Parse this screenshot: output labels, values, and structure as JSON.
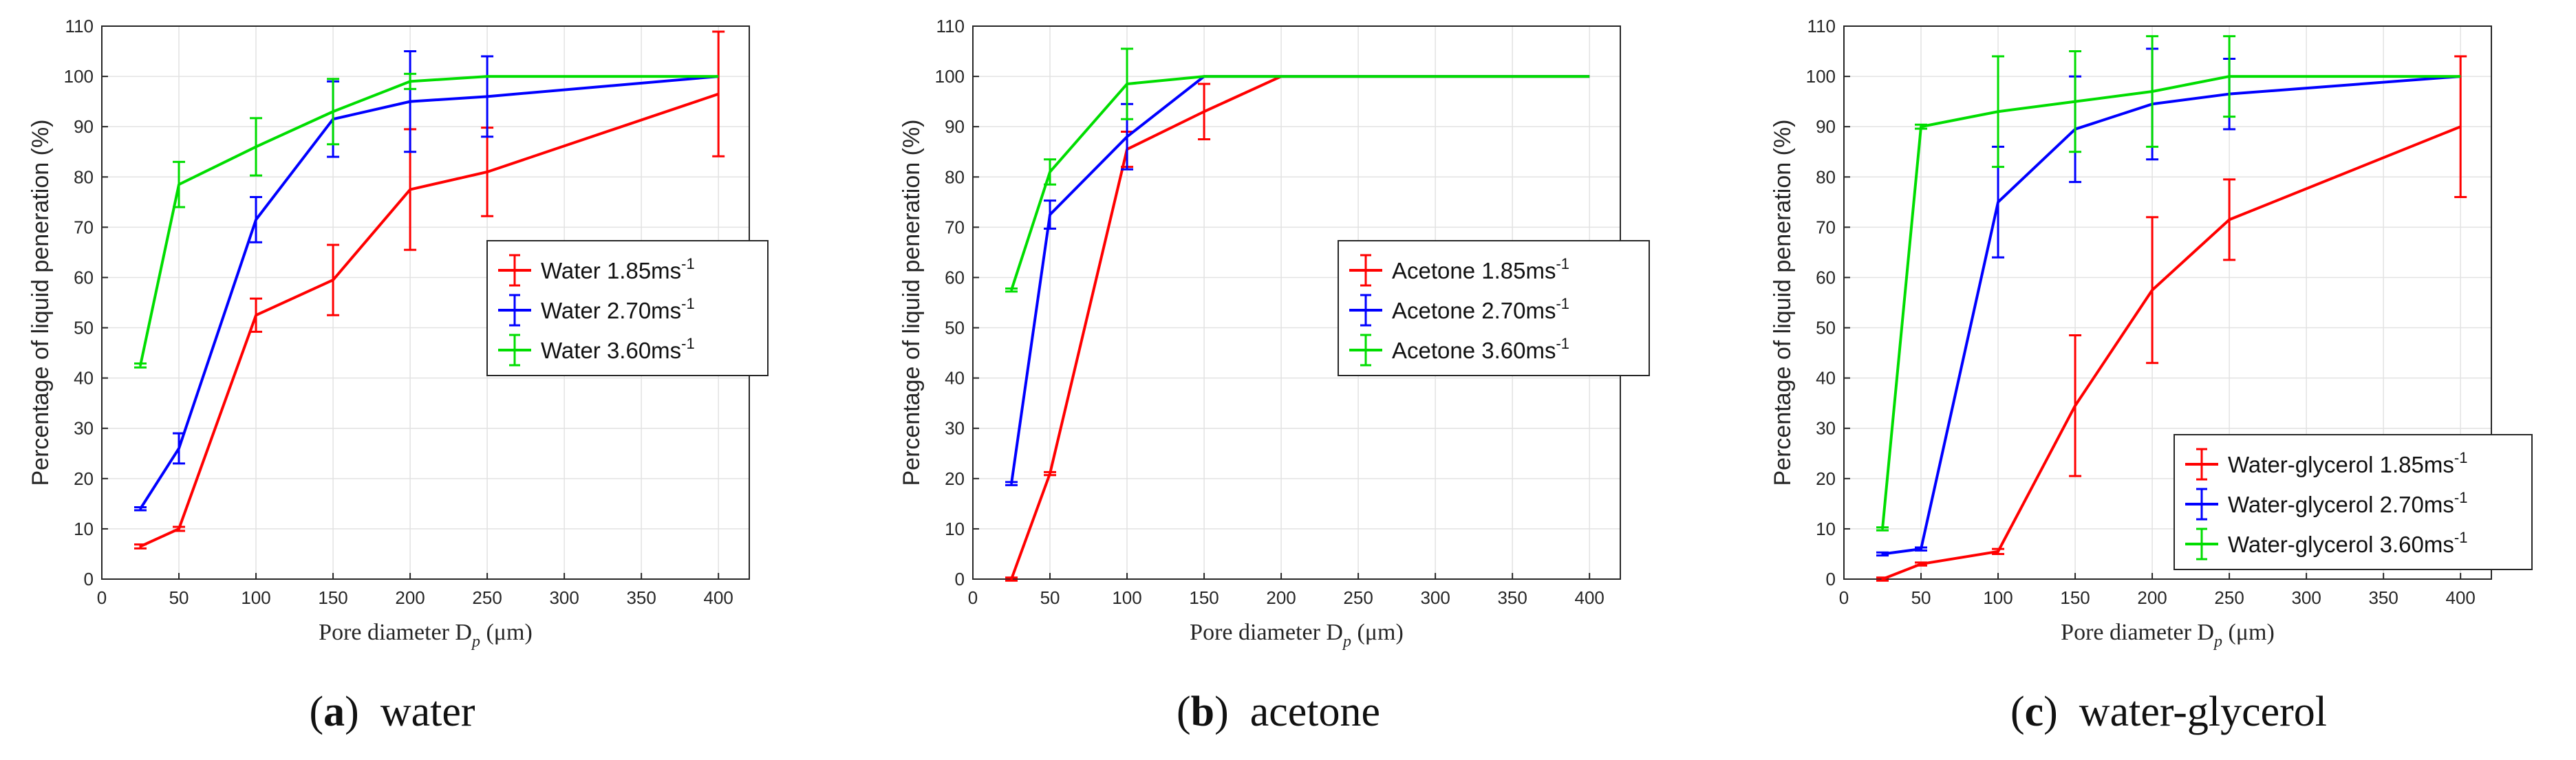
{
  "chart_data": [
    {
      "type": "line",
      "caption_letter": "a",
      "caption_text": "water",
      "xlabel": "Pore diameter D",
      "xlabel_sub": "p",
      "xlabel_unit": " (μm)",
      "ylabel": "Percentage of liquid peneration (%)",
      "xlim": [
        0,
        420
      ],
      "ylim": [
        0,
        110
      ],
      "xticks": [
        0,
        50,
        100,
        150,
        200,
        250,
        300,
        350,
        400
      ],
      "yticks": [
        0,
        10,
        20,
        30,
        40,
        50,
        60,
        70,
        80,
        90,
        100,
        110
      ],
      "grid": true,
      "legend_position": "center-right",
      "series": [
        {
          "name": "Water 1.85ms",
          "superscript": "-1",
          "color": "#ff0000",
          "x": [
            25,
            50,
            100,
            150,
            200,
            250,
            400
          ],
          "y": [
            6.5,
            10,
            52.5,
            59.5,
            77.5,
            81,
            96.5
          ],
          "err": [
            0.4,
            0.4,
            3.3,
            7,
            12,
            8.8,
            12.4
          ]
        },
        {
          "name": "Water 2.70ms",
          "superscript": "-1",
          "color": "#0000ff",
          "x": [
            25,
            50,
            100,
            150,
            200,
            250,
            400
          ],
          "y": [
            14,
            26,
            71.5,
            91.5,
            95,
            96,
            100
          ],
          "err": [
            0.3,
            3,
            4.5,
            7.5,
            10,
            8,
            0
          ]
        },
        {
          "name": "Water 3.60ms",
          "superscript": "-1",
          "color": "#00dd00",
          "x": [
            25,
            50,
            100,
            150,
            200,
            250,
            400
          ],
          "y": [
            42.5,
            78.5,
            86,
            93,
            99,
            100,
            100
          ],
          "err": [
            0.4,
            4.5,
            5.7,
            6.5,
            1.5,
            0,
            0
          ]
        }
      ]
    },
    {
      "type": "line",
      "caption_letter": "b",
      "caption_text": "acetone",
      "xlabel": "Pore diameter D",
      "xlabel_sub": "p",
      "xlabel_unit": " (μm)",
      "ylabel": "Percentage of liquid peneration (%)",
      "xlim": [
        0,
        420
      ],
      "ylim": [
        0,
        110
      ],
      "xticks": [
        0,
        50,
        100,
        150,
        200,
        250,
        300,
        350,
        400
      ],
      "yticks": [
        0,
        10,
        20,
        30,
        40,
        50,
        60,
        70,
        80,
        90,
        100,
        110
      ],
      "grid": true,
      "legend_position": "center-right",
      "series": [
        {
          "name": "Acetone 1.85ms",
          "superscript": "-1",
          "color": "#ff0000",
          "x": [
            25,
            50,
            100,
            150,
            200,
            400
          ],
          "y": [
            0,
            21,
            85.5,
            93,
            100,
            100
          ],
          "err": [
            0.3,
            0.3,
            3.5,
            5.5,
            0,
            0
          ]
        },
        {
          "name": "Acetone 2.70ms",
          "superscript": "-1",
          "color": "#0000ff",
          "x": [
            25,
            50,
            100,
            150,
            400
          ],
          "y": [
            19,
            72.5,
            88,
            100,
            100
          ],
          "err": [
            0.3,
            2.8,
            6.5,
            0,
            0
          ]
        },
        {
          "name": "Acetone 3.60ms",
          "superscript": "-1",
          "color": "#00dd00",
          "x": [
            25,
            50,
            100,
            150,
            400
          ],
          "y": [
            57.5,
            81,
            98.5,
            100,
            100
          ],
          "err": [
            0.3,
            2.5,
            7,
            0,
            0
          ]
        }
      ]
    },
    {
      "type": "line",
      "caption_letter": "c",
      "caption_text": "water-glycerol",
      "xlabel": "Pore diameter D",
      "xlabel_sub": "p",
      "xlabel_unit": " (μm)",
      "ylabel": "Percentage of liquid peneration (%)",
      "xlim": [
        0,
        420
      ],
      "ylim": [
        0,
        110
      ],
      "xticks": [
        0,
        50,
        100,
        150,
        200,
        250,
        300,
        350,
        400
      ],
      "yticks": [
        0,
        10,
        20,
        30,
        40,
        50,
        60,
        70,
        80,
        90,
        100,
        110
      ],
      "grid": true,
      "legend_position": "bottom-right",
      "series": [
        {
          "name": "Water-glycerol 1.85ms",
          "superscript": "-1",
          "color": "#ff0000",
          "x": [
            25,
            50,
            100,
            150,
            200,
            250,
            400
          ],
          "y": [
            0,
            3,
            5.5,
            34.5,
            57.5,
            71.5,
            90
          ],
          "err": [
            0.3,
            0.3,
            0.5,
            14,
            14.5,
            8,
            14
          ]
        },
        {
          "name": "Water-glycerol 2.70ms",
          "superscript": "-1",
          "color": "#0000ff",
          "x": [
            25,
            50,
            100,
            150,
            200,
            250,
            400
          ],
          "y": [
            5,
            6,
            75,
            89.5,
            94.5,
            96.5,
            100
          ],
          "err": [
            0.3,
            0.3,
            11,
            10.5,
            11,
            7,
            0
          ]
        },
        {
          "name": "Water-glycerol 3.60ms",
          "superscript": "-1",
          "color": "#00dd00",
          "x": [
            25,
            50,
            100,
            150,
            200,
            250,
            400
          ],
          "y": [
            10,
            90,
            93,
            95,
            97,
            100,
            100
          ],
          "err": [
            0.3,
            0.4,
            11,
            10,
            11,
            8,
            0
          ]
        }
      ]
    }
  ]
}
